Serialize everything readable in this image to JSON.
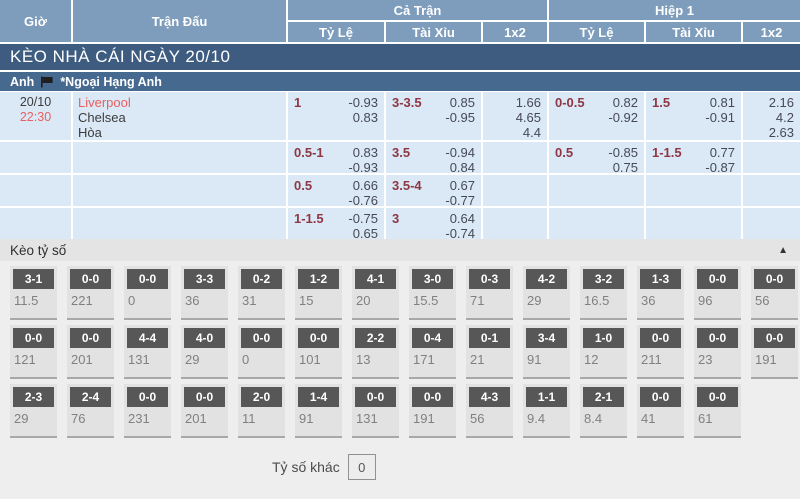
{
  "header": {
    "gio": "Giờ",
    "tran_dau": "Trận Đấu",
    "ca_tran": "Cả Trận",
    "hiep1": "Hiệp 1",
    "ty_le": "Tỷ Lệ",
    "tai_xiu": "Tài Xỉu",
    "one_x_two": "1x2"
  },
  "day_banner": "KÈO NHÀ CÁI NGÀY 20/10",
  "league": {
    "country": "Anh",
    "flag_icon": "flag-icon",
    "name": "*Ngoại Hạng Anh"
  },
  "match": {
    "date": "20/10",
    "time": "22:30",
    "home": "Liverpool",
    "away": "Chelsea",
    "draw_label": "Hòa"
  },
  "odds_rows": [
    {
      "ct_ty_le": {
        "line": "1",
        "v1": "-0.93",
        "v2": "0.83"
      },
      "ct_tai_xiu": {
        "line": "3-3.5",
        "v1": "0.85",
        "v2": "-0.95"
      },
      "ct_1x2": [
        "1.66",
        "4.65",
        "4.4"
      ],
      "h1_ty_le": {
        "line": "0-0.5",
        "v1": "0.82",
        "v2": "-0.92"
      },
      "h1_tai_xiu": {
        "line": "1.5",
        "v1": "0.81",
        "v2": "-0.91"
      },
      "h1_1x2": [
        "2.16",
        "4.2",
        "2.63"
      ]
    },
    {
      "ct_ty_le": {
        "line": "0.5-1",
        "v1": "0.83",
        "v2": "-0.93"
      },
      "ct_tai_xiu": {
        "line": "3.5",
        "v1": "-0.94",
        "v2": "0.84"
      },
      "ct_1x2": [],
      "h1_ty_le": {
        "line": "0.5",
        "v1": "-0.85",
        "v2": "0.75"
      },
      "h1_tai_xiu": {
        "line": "1-1.5",
        "v1": "0.77",
        "v2": "-0.87"
      },
      "h1_1x2": []
    },
    {
      "ct_ty_le": {
        "line": "0.5",
        "v1": "0.66",
        "v2": "-0.76"
      },
      "ct_tai_xiu": {
        "line": "3.5-4",
        "v1": "0.67",
        "v2": "-0.77"
      },
      "ct_1x2": [],
      "h1_ty_le": null,
      "h1_tai_xiu": null,
      "h1_1x2": []
    },
    {
      "ct_ty_le": {
        "line": "1-1.5",
        "v1": "-0.75",
        "v2": "0.65"
      },
      "ct_tai_xiu": {
        "line": "3",
        "v1": "0.64",
        "v2": "-0.74"
      },
      "ct_1x2": [],
      "h1_ty_le": null,
      "h1_tai_xiu": null,
      "h1_1x2": []
    }
  ],
  "score_section": {
    "title": "Kèo tỷ số",
    "collapse_icon": "▲",
    "score_rows": [
      [
        {
          "score": "3-1",
          "odds": "11.5"
        },
        {
          "score": "0-0",
          "odds": "221"
        },
        {
          "score": "0-0",
          "odds": "0"
        },
        {
          "score": "3-3",
          "odds": "36"
        },
        {
          "score": "0-2",
          "odds": "31"
        },
        {
          "score": "1-2",
          "odds": "15"
        },
        {
          "score": "4-1",
          "odds": "20"
        },
        {
          "score": "3-0",
          "odds": "15.5"
        },
        {
          "score": "0-3",
          "odds": "71"
        },
        {
          "score": "4-2",
          "odds": "29"
        },
        {
          "score": "3-2",
          "odds": "16.5"
        },
        {
          "score": "1-3",
          "odds": "36"
        },
        {
          "score": "0-0",
          "odds": "96"
        },
        {
          "score": "0-0",
          "odds": "56"
        }
      ],
      [
        {
          "score": "0-0",
          "odds": "121"
        },
        {
          "score": "0-0",
          "odds": "201"
        },
        {
          "score": "4-4",
          "odds": "131"
        },
        {
          "score": "4-0",
          "odds": "29"
        },
        {
          "score": "0-0",
          "odds": "0"
        },
        {
          "score": "0-0",
          "odds": "101"
        },
        {
          "score": "2-2",
          "odds": "13"
        },
        {
          "score": "0-4",
          "odds": "171"
        },
        {
          "score": "0-1",
          "odds": "21"
        },
        {
          "score": "3-4",
          "odds": "91"
        },
        {
          "score": "1-0",
          "odds": "12"
        },
        {
          "score": "0-0",
          "odds": "211"
        },
        {
          "score": "0-0",
          "odds": "23"
        },
        {
          "score": "0-0",
          "odds": "191"
        }
      ],
      [
        {
          "score": "2-3",
          "odds": "29"
        },
        {
          "score": "2-4",
          "odds": "76"
        },
        {
          "score": "0-0",
          "odds": "231"
        },
        {
          "score": "0-0",
          "odds": "201"
        },
        {
          "score": "2-0",
          "odds": "11"
        },
        {
          "score": "1-4",
          "odds": "91"
        },
        {
          "score": "0-0",
          "odds": "131"
        },
        {
          "score": "0-0",
          "odds": "191"
        },
        {
          "score": "4-3",
          "odds": "56"
        },
        {
          "score": "1-1",
          "odds": "9.4"
        },
        {
          "score": "2-1",
          "odds": "8.4"
        },
        {
          "score": "0-0",
          "odds": "41"
        },
        {
          "score": "0-0",
          "odds": "61"
        }
      ]
    ],
    "other_score": {
      "label": "Tỷ số khác",
      "value": "0"
    }
  },
  "colors": {
    "header_blue": "#7e9cbb",
    "banner_dark": "#3d5c80",
    "league_blue": "#46698f",
    "cell_blue": "#dbe8f6",
    "line_maroon": "#8e3744",
    "odds_text": "#454a54",
    "team_red": "#e8605f",
    "chip_grey": "#575757",
    "section_grey": "#eeeeee"
  }
}
